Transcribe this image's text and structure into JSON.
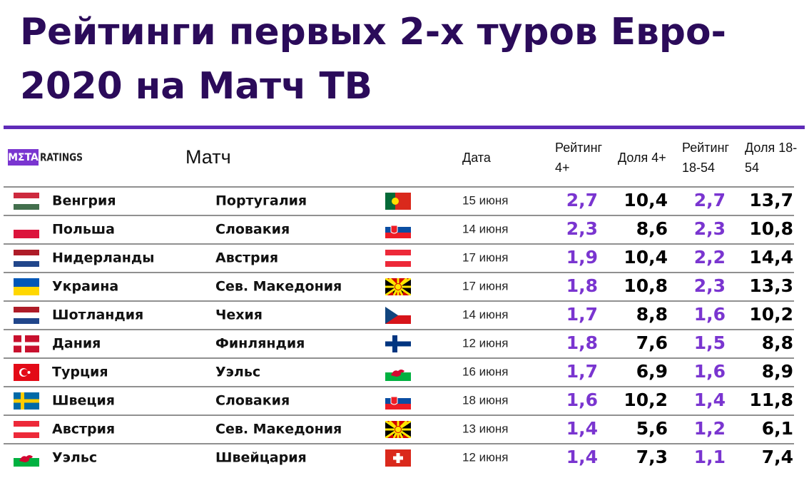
{
  "header": {
    "title_lines": [
      "Рейтинги первых 2-х туров Евро-",
      "2020 на Матч ТВ"
    ]
  },
  "logo": {
    "box": "MΣTA",
    "text": "RATINGS"
  },
  "table": {
    "columns": [
      [
        "Матч"
      ],
      [
        "Дата"
      ],
      [
        "Рейтинг",
        "4+"
      ],
      [
        "Доля 4+"
      ],
      [
        "Рейтинг",
        "18-54"
      ],
      [
        "Доля 18-",
        "54"
      ]
    ],
    "rows": [
      [
        "Венгрия",
        "Португалия",
        "15 июня",
        "2,7",
        "10,4",
        "2,7",
        "13,7"
      ],
      [
        "Польша",
        "Словакия",
        "14 июня",
        "2,3",
        "8,6",
        "2,3",
        "10,8"
      ],
      [
        "Нидерланды",
        "Австрия",
        "17 июня",
        "1,9",
        "10,4",
        "2,2",
        "14,4"
      ],
      [
        "Украина",
        "Сев. Македония",
        "17 июня",
        "1,8",
        "10,8",
        "2,3",
        "13,3"
      ],
      [
        "Шотландия",
        "Чехия",
        "14 июня",
        "1,7",
        "8,8",
        "1,6",
        "10,2"
      ],
      [
        "Дания",
        "Финляндия",
        "12 июня",
        "1,8",
        "7,6",
        "1,5",
        "8,8"
      ],
      [
        "Турция",
        "Уэльс",
        "16 июня",
        "1,7",
        "6,9",
        "1,6",
        "8,9"
      ],
      [
        "Швеция",
        "Словакия",
        "18 июня",
        "1,6",
        "10,2",
        "1,4",
        "11,8"
      ],
      [
        "Австрия",
        "Сев. Македония",
        "13 июня",
        "1,4",
        "5,6",
        "1,2",
        "6,1"
      ],
      [
        "Уэльс",
        "Швейцария",
        "12 июня",
        "1,4",
        "7,3",
        "1,1",
        "7,4"
      ]
    ]
  }
}
